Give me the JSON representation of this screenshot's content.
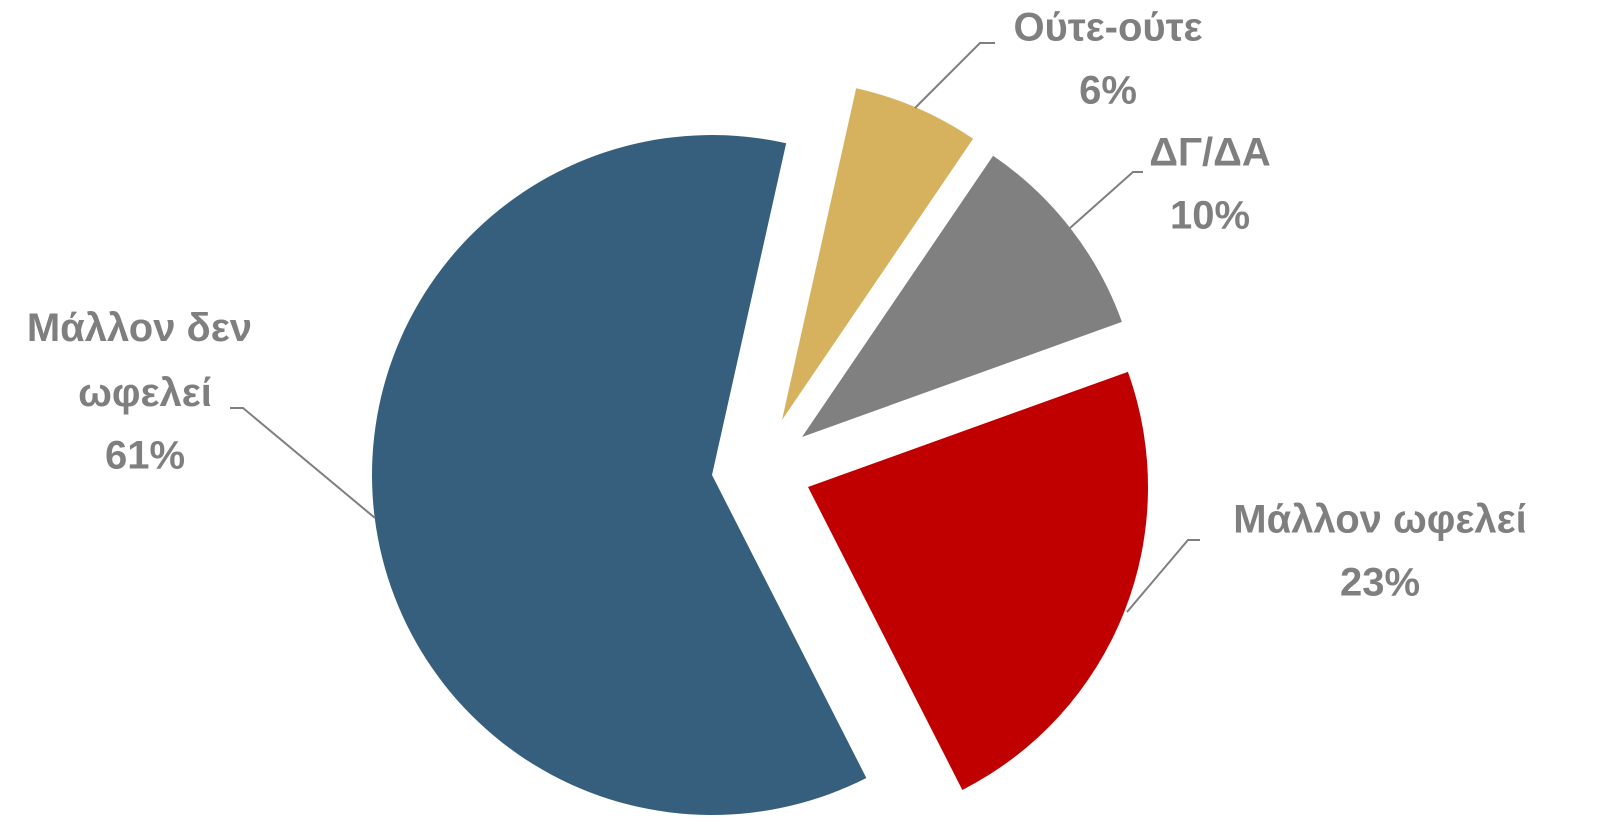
{
  "chart_data": {
    "type": "pie",
    "categories": [
      "Ούτε-ούτε",
      "ΔΓ/ΔΑ",
      "Μάλλον ωφελεί",
      "Μάλλον δεν ωφελεί"
    ],
    "values": [
      6,
      10,
      23,
      61
    ],
    "value_labels": [
      "6%",
      "10%",
      "23%",
      "61%"
    ],
    "colors": [
      "#d6b25e",
      "#808080",
      "#c00000",
      "#365f7e"
    ]
  }
}
